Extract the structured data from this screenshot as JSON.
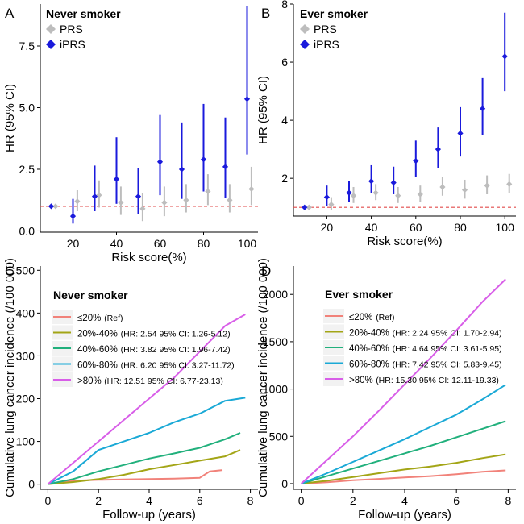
{
  "panels": [
    {
      "letter": "A",
      "chart_data": {
        "type": "scatter",
        "title": "Never smoker",
        "xlabel": "Risk score(%)",
        "ylabel": "HR (95% CI)",
        "xlim": [
          5,
          105
        ],
        "ylim": [
          -0.05,
          9.2
        ],
        "xticks": [
          20,
          40,
          60,
          80,
          100
        ],
        "yticks": [
          0.0,
          2.5,
          5.0,
          7.5
        ],
        "ytick_labels": [
          "0.0",
          "2.5",
          "5.0",
          "7.5"
        ],
        "reference_line": 1,
        "series": [
          {
            "name": "PRS",
            "color": "#bdbdbd",
            "marker": "diamond",
            "x": [
              12,
              22,
              32,
              42,
              52,
              62,
              72,
              82,
              92,
              102
            ],
            "y": [
              1.0,
              1.2,
              1.45,
              1.15,
              0.9,
              1.15,
              1.25,
              1.6,
              1.25,
              1.7
            ],
            "lo": [
              1.0,
              0.8,
              0.95,
              0.65,
              0.4,
              0.6,
              0.75,
              1.05,
              0.75,
              1.05
            ],
            "hi": [
              1.0,
              1.65,
              2.05,
              1.8,
              1.55,
              1.8,
              1.9,
              2.3,
              1.9,
              2.6
            ]
          },
          {
            "name": "iPRS",
            "color": "#1a1adc",
            "marker": "diamond",
            "x": [
              10,
              20,
              30,
              40,
              50,
              60,
              70,
              80,
              90,
              100
            ],
            "y": [
              1.0,
              0.6,
              1.4,
              2.1,
              1.4,
              2.8,
              2.5,
              2.9,
              2.6,
              5.35
            ],
            "lo": [
              1.0,
              0.3,
              0.8,
              1.1,
              0.7,
              1.45,
              1.3,
              1.6,
              1.35,
              3.1
            ],
            "hi": [
              1.0,
              1.3,
              2.65,
              3.8,
              2.55,
              4.7,
              4.4,
              5.15,
              4.6,
              9.1
            ]
          }
        ]
      }
    },
    {
      "letter": "B",
      "chart_data": {
        "type": "scatter",
        "title": "Ever smoker",
        "xlabel": "Risk score(%)",
        "ylabel": "HR (95% CI)",
        "xlim": [
          5,
          105
        ],
        "ylim": [
          0.7,
          8.0
        ],
        "xticks": [
          20,
          40,
          60,
          80,
          100
        ],
        "yticks": [
          2,
          4,
          6,
          8
        ],
        "ytick_labels": [
          "2",
          "4",
          "6",
          "8"
        ],
        "reference_line": 1,
        "series": [
          {
            "name": "PRS",
            "color": "#bdbdbd",
            "marker": "diamond",
            "x": [
              12,
              22,
              32,
              42,
              52,
              62,
              72,
              82,
              92,
              102
            ],
            "y": [
              1.0,
              1.1,
              1.4,
              1.5,
              1.4,
              1.45,
              1.7,
              1.6,
              1.75,
              1.8
            ],
            "lo": [
              1.0,
              0.9,
              1.15,
              1.25,
              1.15,
              1.2,
              1.4,
              1.3,
              1.45,
              1.5
            ],
            "hi": [
              1.0,
              1.35,
              1.7,
              1.8,
              1.7,
              1.75,
              2.05,
              1.95,
              2.1,
              2.15
            ]
          },
          {
            "name": "iPRS",
            "color": "#1a1adc",
            "marker": "diamond",
            "x": [
              10,
              20,
              30,
              40,
              50,
              60,
              70,
              80,
              90,
              100
            ],
            "y": [
              1.0,
              1.35,
              1.5,
              1.9,
              1.85,
              2.6,
              3.0,
              3.55,
              4.4,
              6.2
            ],
            "lo": [
              1.0,
              1.05,
              1.2,
              1.5,
              1.45,
              2.05,
              2.35,
              2.75,
              3.5,
              5.0
            ],
            "hi": [
              1.0,
              1.75,
              1.9,
              2.45,
              2.4,
              3.3,
              3.75,
              4.45,
              5.45,
              7.7
            ]
          }
        ]
      }
    },
    {
      "letter": "C",
      "chart_data": {
        "type": "line",
        "title": "Never smoker",
        "xlabel": "Follow-up (years)",
        "ylabel": "Cumulative lung cancer incidence (/100 000)",
        "xlim": [
          -0.3,
          8.3
        ],
        "ylim": [
          -12,
          510
        ],
        "xticks": [
          0,
          2,
          4,
          6,
          8
        ],
        "yticks": [
          0,
          100,
          200,
          300,
          400,
          500
        ],
        "series": [
          {
            "name": "≤20%",
            "stats": "(Ref)",
            "color": "#f1827a",
            "x": [
              0,
              1,
              2,
              3,
              4,
              5,
              6,
              6.4,
              6.9
            ],
            "y": [
              0,
              8,
              10,
              11,
              12,
              13,
              15,
              30,
              33
            ]
          },
          {
            "name": "20%-40%",
            "stats": "(HR: 2.54 95% CI: 1.26-5.12)",
            "color": "#a3a516",
            "x": [
              0,
              1,
              2,
              3,
              4,
              5,
              6,
              7,
              7.6
            ],
            "y": [
              0,
              5,
              12,
              22,
              35,
              45,
              55,
              65,
              80
            ]
          },
          {
            "name": "40%-60%",
            "stats": "(HR: 3.82 95% CI: 1.96-7.42)",
            "color": "#21b07c",
            "x": [
              0,
              1,
              2,
              3,
              4,
              5,
              6,
              7,
              7.6
            ],
            "y": [
              0,
              12,
              30,
              45,
              60,
              72,
              85,
              105,
              120
            ]
          },
          {
            "name": "60%-80%",
            "stats": "(HR: 6.20 95% CI: 3.27-11.72)",
            "color": "#1aa9d6",
            "x": [
              0,
              1,
              2,
              3,
              4,
              5,
              6,
              7,
              7.8
            ],
            "y": [
              0,
              30,
              80,
              100,
              120,
              145,
              165,
              195,
              202
            ]
          },
          {
            "name": ">80%",
            "stats": "(HR: 12.51 95% CI: 6.77-23.13)",
            "color": "#d85ee8",
            "x": [
              0,
              1,
              2,
              3,
              4,
              5,
              6,
              7,
              7.8
            ],
            "y": [
              0,
              50,
              100,
              150,
              200,
              250,
              310,
              370,
              397
            ]
          }
        ]
      }
    },
    {
      "letter": "D",
      "chart_data": {
        "type": "line",
        "title": "Ever smoker",
        "xlabel": "Follow-up (years)",
        "ylabel": "Cumulative lung cancer incidence (/100 000)",
        "xlim": [
          -0.3,
          8.3
        ],
        "ylim": [
          -60,
          2300
        ],
        "xticks": [
          0,
          2,
          4,
          6,
          8
        ],
        "yticks": [
          0,
          500,
          1000,
          1500,
          2000
        ],
        "series": [
          {
            "name": "≤20%",
            "stats": "(Ref)",
            "color": "#f1827a",
            "x": [
              0,
              1,
              2,
              3,
              4,
              5,
              6,
              7,
              7.9
            ],
            "y": [
              0,
              15,
              35,
              50,
              65,
              80,
              100,
              125,
              140
            ]
          },
          {
            "name": "20%-40%",
            "stats": "(HR: 2.24 95% CI: 1.70-2.94)",
            "color": "#a3a516",
            "x": [
              0,
              1,
              2,
              3,
              4,
              5,
              6,
              7,
              7.9
            ],
            "y": [
              0,
              30,
              70,
              110,
              150,
              180,
              220,
              270,
              310
            ]
          },
          {
            "name": "40%-60%",
            "stats": "(HR: 4.64 95% CI: 3.61-5.95)",
            "color": "#21b07c",
            "x": [
              0,
              1,
              2,
              3,
              4,
              5,
              6,
              7,
              7.9
            ],
            "y": [
              0,
              80,
              160,
              240,
              320,
              400,
              490,
              580,
              660
            ]
          },
          {
            "name": "60%-80%",
            "stats": "(HR: 7.42 95% CI: 5.83-9.45)",
            "color": "#1aa9d6",
            "x": [
              0,
              1,
              2,
              3,
              4,
              5,
              6,
              7,
              7.9
            ],
            "y": [
              0,
              110,
              230,
              350,
              470,
              600,
              730,
              890,
              1045
            ]
          },
          {
            "name": ">80%",
            "stats": "(HR: 15.30 95% CI: 12.11-19.33)",
            "color": "#d85ee8",
            "x": [
              0,
              1,
              2,
              3,
              4,
              5,
              6,
              7,
              7.9
            ],
            "y": [
              0,
              250,
              500,
              770,
              1050,
              1330,
              1620,
              1920,
              2160
            ]
          }
        ]
      }
    }
  ]
}
